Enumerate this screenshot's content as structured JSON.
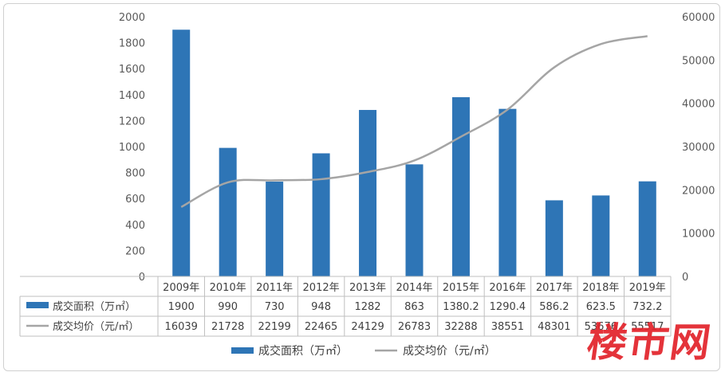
{
  "chart_data": {
    "type": "bar",
    "categories": [
      "2009年",
      "2010年",
      "2011年",
      "2012年",
      "2013年",
      "2014年",
      "2015年",
      "2016年",
      "2017年",
      "2018年",
      "2019年"
    ],
    "series": [
      {
        "name": "成交面积（万㎡）",
        "type": "bar",
        "axis": "left",
        "values": [
          1900,
          990,
          730,
          948,
          1282,
          863,
          1380.2,
          1290.4,
          586.2,
          623.5,
          732.2
        ],
        "labels": [
          "1900",
          "990",
          "730",
          "948",
          "1282",
          "863",
          "1380.2",
          "1290.4",
          "586.2",
          "623.5",
          "732.2"
        ]
      },
      {
        "name": "成交均价（元/㎡）",
        "type": "line",
        "axis": "right",
        "values": [
          16039,
          21728,
          22199,
          22465,
          24129,
          26783,
          32288,
          38551,
          48301,
          53676,
          55517
        ],
        "labels": [
          "16039",
          "21728",
          "22199",
          "22465",
          "24129",
          "26783",
          "32288",
          "38551",
          "48301",
          "53676",
          "55517"
        ]
      }
    ],
    "y_left": {
      "min": 0,
      "max": 2000,
      "step": 200,
      "ticks": [
        "0",
        "200",
        "400",
        "600",
        "800",
        "1000",
        "1200",
        "1400",
        "1600",
        "1800",
        "2000"
      ]
    },
    "y_right": {
      "min": 0,
      "max": 60000,
      "step": 10000,
      "ticks": [
        "0",
        "10000",
        "20000",
        "30000",
        "40000",
        "50000",
        "60000"
      ]
    },
    "legend_position": "bottom",
    "data_table": true,
    "grid": false,
    "colors": {
      "bar": "#2e75b6",
      "line": "#a5a5a5"
    }
  },
  "watermark": "楼市网"
}
